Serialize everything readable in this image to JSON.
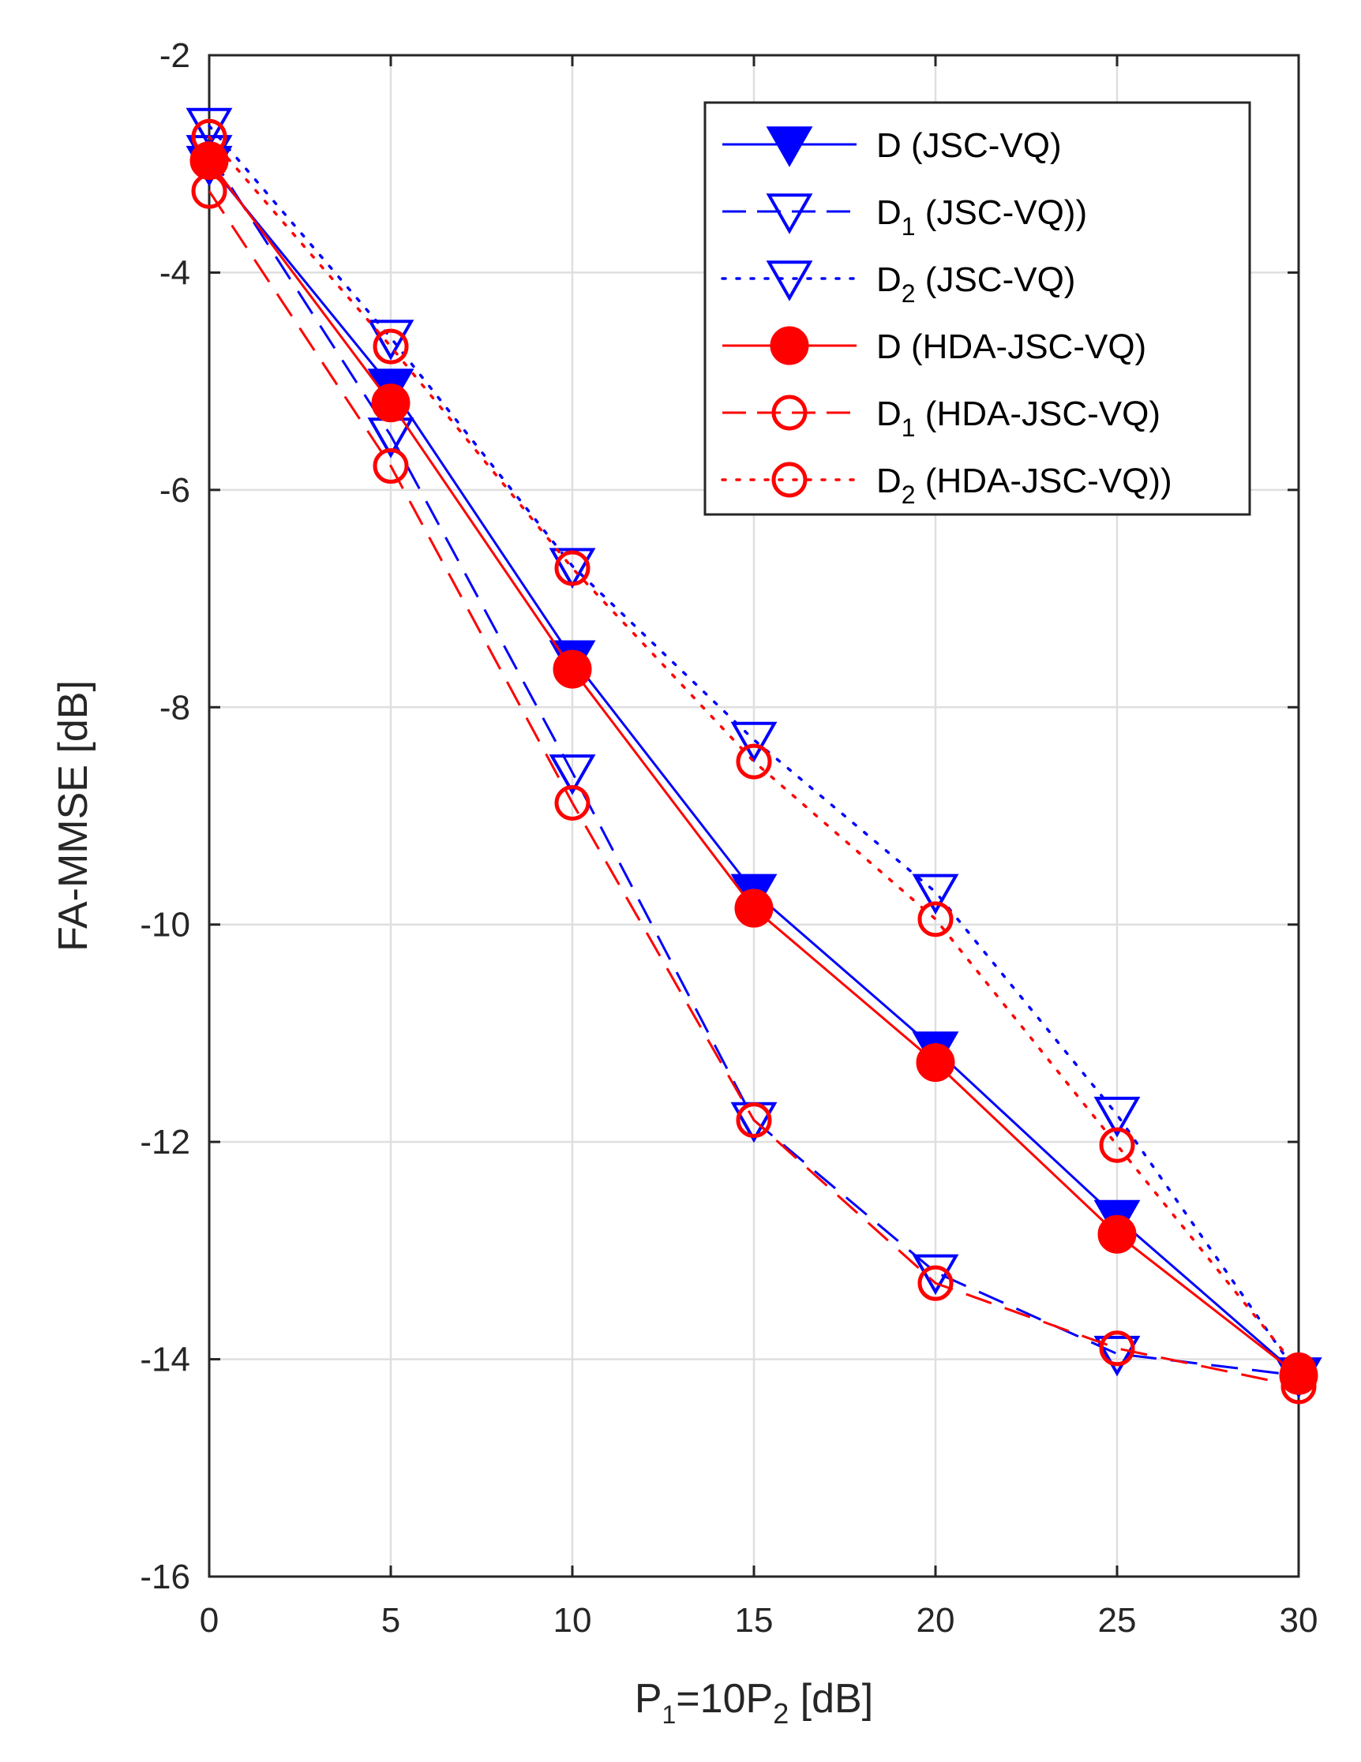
{
  "chart_data": {
    "type": "line",
    "title": "",
    "xlabel": {
      "main": "P",
      "sub1": "1",
      "mid": "=10P",
      "sub2": "2",
      "tail": " [dB]"
    },
    "ylabel": "FA-MMSE [dB]",
    "xlim": [
      0,
      30
    ],
    "ylim": [
      -16,
      -2
    ],
    "xticks": [
      0,
      5,
      10,
      15,
      20,
      25,
      30
    ],
    "xtick_labels": [
      "0",
      "5",
      "10",
      "15",
      "20",
      "25",
      "30"
    ],
    "yticks": [
      -16,
      -14,
      -12,
      -10,
      -8,
      -6,
      -4,
      -2
    ],
    "ytick_labels": [
      "-16",
      "-14",
      "-12",
      "-10",
      "-8",
      "-6",
      "-4",
      "-2"
    ],
    "grid": true,
    "legend_position": "top-right",
    "x": [
      0,
      5,
      10,
      15,
      20,
      25,
      30
    ],
    "series": [
      {
        "name": "D (JSC-VQ)",
        "legend_main": "D",
        "legend_sub": "",
        "legend_tail": " (JSC-VQ)",
        "color": "#0000ff",
        "line": "solid",
        "marker": "triangle-down-filled",
        "values": [
          -3.0,
          -5.05,
          -7.55,
          -9.7,
          -11.15,
          -12.7,
          -14.15
        ]
      },
      {
        "name": "D1 (JSC-VQ))",
        "legend_main": "D",
        "legend_sub": "1",
        "legend_tail": " (JSC-VQ))",
        "color": "#0000ff",
        "line": "dashed",
        "marker": "triangle-down-open",
        "values": [
          -2.9,
          -5.5,
          -8.6,
          -11.8,
          -13.2,
          -13.95,
          -14.15
        ]
      },
      {
        "name": "D2 (JSC-VQ)",
        "legend_main": "D",
        "legend_sub": "2",
        "legend_tail": " (JSC-VQ)",
        "color": "#0000ff",
        "line": "dotted",
        "marker": "triangle-down-open",
        "values": [
          -2.65,
          -4.6,
          -6.7,
          -8.3,
          -9.7,
          -11.75,
          -14.15
        ]
      },
      {
        "name": "D (HDA-JSC-VQ)",
        "legend_main": "D",
        "legend_sub": "",
        "legend_tail": " (HDA-JSC-VQ)",
        "color": "#ff0000",
        "line": "solid",
        "marker": "circle-filled",
        "values": [
          -2.97,
          -5.2,
          -7.65,
          -9.85,
          -11.27,
          -12.85,
          -14.15
        ]
      },
      {
        "name": "D1 (HDA-JSC-VQ)",
        "legend_main": "D",
        "legend_sub": "1",
        "legend_tail": " (HDA-JSC-VQ)",
        "color": "#ff0000",
        "line": "dashed",
        "marker": "circle-open",
        "values": [
          -3.25,
          -5.78,
          -8.88,
          -11.8,
          -13.3,
          -13.9,
          -14.25
        ]
      },
      {
        "name": "D2 (HDA-JSC-VQ))",
        "legend_main": "D",
        "legend_sub": "2",
        "legend_tail": " (HDA-JSC-VQ))",
        "color": "#ff0000",
        "line": "dotted",
        "marker": "circle-open",
        "values": [
          -2.75,
          -4.68,
          -6.72,
          -8.5,
          -9.95,
          -12.03,
          -14.1
        ]
      }
    ]
  }
}
